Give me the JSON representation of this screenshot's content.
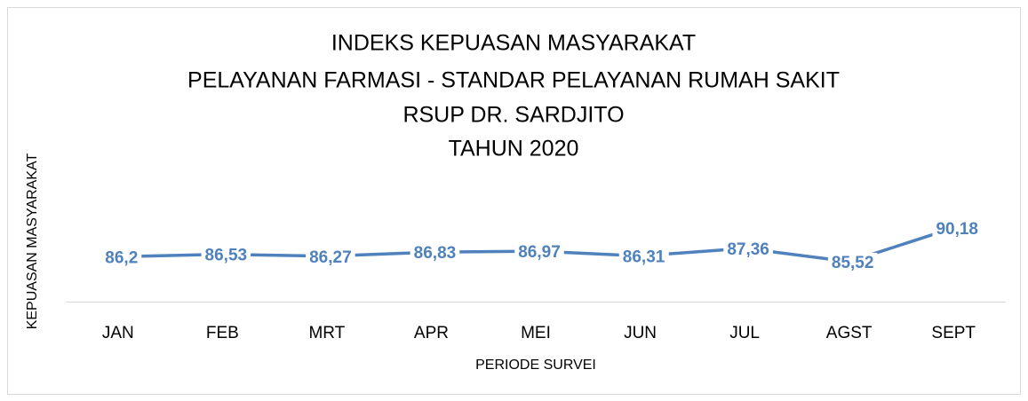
{
  "chart_data": {
    "type": "line",
    "title": [
      "INDEKS KEPUASAN MASYARAKAT",
      "PELAYANAN FARMASI - STANDAR PELAYANAN RUMAH SAKIT",
      "RSUP DR. SARDJITO",
      "TAHUN 2020"
    ],
    "x_label": "PERIODE SURVEI",
    "y_label": "KEPUASAN MASYARAKAT",
    "categories": [
      "JAN",
      "FEB",
      "MRT",
      "APR",
      "MEI",
      "JUN",
      "JUL",
      "AGST",
      "SEPT"
    ],
    "values": [
      86.2,
      86.53,
      86.27,
      86.83,
      86.97,
      86.31,
      87.36,
      85.52,
      90.18
    ],
    "value_labels": [
      "86,2",
      "86,53",
      "86,27",
      "86,83",
      "86,97",
      "86,31",
      "87,36",
      "85,52",
      "90,18"
    ],
    "color": "#4f81bd",
    "ylim": [
      80,
      92
    ]
  }
}
